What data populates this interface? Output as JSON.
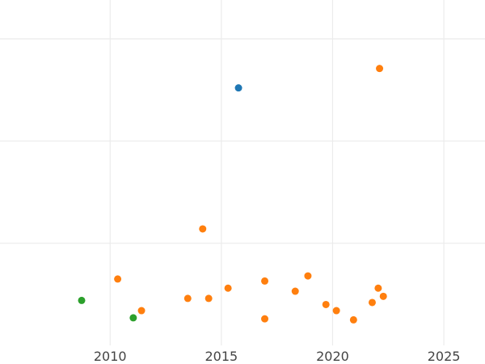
{
  "chart_data": {
    "type": "scatter",
    "title": "",
    "xlabel": "",
    "ylabel": "",
    "xlim": [
      2005.05,
      2026.85
    ],
    "ylim": [
      0,
      3.38
    ],
    "x_ticks": [
      2010,
      2015,
      2020,
      2025
    ],
    "x_tick_labels": [
      "2010",
      "2015",
      "2020",
      "2025"
    ],
    "y_gridlines": [
      1,
      2,
      3
    ],
    "grid": true,
    "legend": "none",
    "series": [
      {
        "name": "blue",
        "color": "#1f77b4",
        "points": [
          [
            2015.77,
            2.52
          ]
        ]
      },
      {
        "name": "orange",
        "color": "#ff7f0e",
        "points": [
          [
            2022.11,
            2.71
          ],
          [
            2014.16,
            1.14
          ],
          [
            2010.34,
            0.65
          ],
          [
            2011.41,
            0.34
          ],
          [
            2013.49,
            0.46
          ],
          [
            2014.43,
            0.46
          ],
          [
            2015.3,
            0.56
          ],
          [
            2016.95,
            0.63
          ],
          [
            2016.95,
            0.26
          ],
          [
            2018.32,
            0.53
          ],
          [
            2018.89,
            0.68
          ],
          [
            2019.7,
            0.4
          ],
          [
            2020.17,
            0.34
          ],
          [
            2020.94,
            0.25
          ],
          [
            2021.78,
            0.42
          ],
          [
            2022.05,
            0.56
          ],
          [
            2022.28,
            0.48
          ]
        ]
      },
      {
        "name": "green",
        "color": "#2ca02c",
        "points": [
          [
            2008.72,
            0.44
          ],
          [
            2011.04,
            0.27
          ]
        ]
      }
    ]
  }
}
